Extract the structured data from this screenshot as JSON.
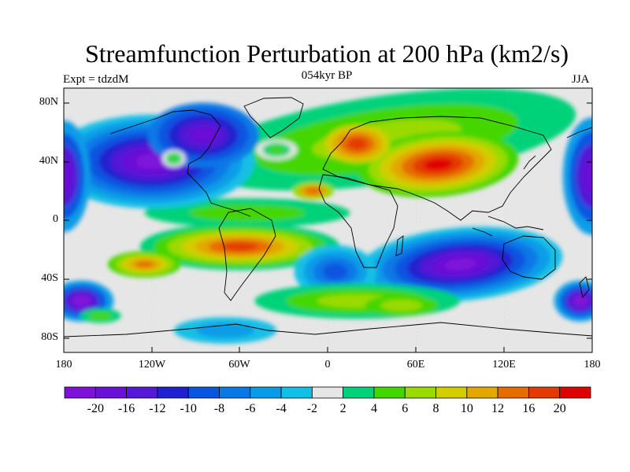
{
  "plot": {
    "title": "Streamfunction Perturbation at 200 hPa (km2/s)",
    "experiment": "Expt = tdzdM",
    "period": "054kyr BP",
    "season": "JJA"
  },
  "chart_data": {
    "type": "heatmap",
    "variable": "Streamfunction Perturbation",
    "units": "km2/s",
    "level": "200 hPa",
    "projection": "cylindrical equidistant",
    "lon_range": [
      -180,
      180
    ],
    "lat_range": [
      -90,
      90
    ],
    "x_ticks": [
      "180",
      "120W",
      "60W",
      "0",
      "60E",
      "120E",
      "180"
    ],
    "y_ticks": [
      "80N",
      "40N",
      "0",
      "40S",
      "80S"
    ],
    "colorbar": {
      "labels": [
        "-20",
        "-16",
        "-12",
        "-10",
        "-8",
        "-6",
        "-4",
        "-2",
        "2",
        "4",
        "6",
        "8",
        "10",
        "12",
        "16",
        "20"
      ],
      "colors": [
        "#7f12d9",
        "#6a10d7",
        "#5518d6",
        "#2020d0",
        "#0a55e0",
        "#0878e6",
        "#089ce8",
        "#12bfe6",
        "#e6e6e6",
        "#00d27a",
        "#44d600",
        "#9ada00",
        "#d2ce00",
        "#e3a700",
        "#e66c00",
        "#e33a00",
        "#e00000"
      ]
    },
    "features": [
      {
        "region": "Central/South Asia",
        "sign": "positive",
        "peak": "20"
      },
      {
        "region": "Europe",
        "sign": "positive",
        "peak": "16"
      },
      {
        "region": "South Atlantic / South America",
        "sign": "positive",
        "peak": "16"
      },
      {
        "region": "Southeast Pacific",
        "sign": "positive",
        "peak": "12"
      },
      {
        "region": "North Pacific / North America",
        "sign": "negative",
        "peak": "-20"
      },
      {
        "region": "Southern Indian Ocean / Australia",
        "sign": "negative",
        "peak": "-20"
      },
      {
        "region": "South Pacific (date line)",
        "sign": "negative",
        "peak": "-20"
      },
      {
        "region": "Southern Ocean ring",
        "sign": "positive",
        "peak": "8"
      }
    ]
  }
}
